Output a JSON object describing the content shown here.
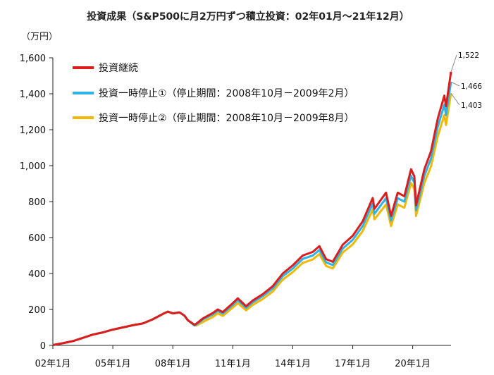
{
  "chart_data": {
    "type": "line",
    "title": "投資成果（S&P500に月2万円ずつ積立投資：02年01月～21年12月）",
    "ylabel": "（万円）",
    "ylim": [
      0,
      1600
    ],
    "yticks": [
      0,
      200,
      400,
      600,
      800,
      1000,
      1200,
      1400,
      1600
    ],
    "ytick_labels": [
      "0",
      "200",
      "400",
      "600",
      "800",
      "1,000",
      "1,200",
      "1,400",
      "1,600"
    ],
    "xlim": [
      "2002-01",
      "2021-12"
    ],
    "xticks": [
      "2002-01",
      "2005-01",
      "2008-01",
      "2011-01",
      "2014-01",
      "2017-01",
      "2020-01"
    ],
    "xtick_labels": [
      "02年1月",
      "05年1月",
      "08年1月",
      "11年1月",
      "14年1月",
      "17年1月",
      "20年1月"
    ],
    "grid": false,
    "legend_position": "top-left",
    "series": [
      {
        "name": "投資継続",
        "color": "#dd1c1c",
        "end_label": "1,522",
        "points": [
          [
            "2002-01",
            2
          ],
          [
            "2002-07",
            12
          ],
          [
            "2003-01",
            24
          ],
          [
            "2003-07",
            42
          ],
          [
            "2004-01",
            60
          ],
          [
            "2004-07",
            72
          ],
          [
            "2005-01",
            88
          ],
          [
            "2005-07",
            100
          ],
          [
            "2006-01",
            112
          ],
          [
            "2006-07",
            122
          ],
          [
            "2007-01",
            145
          ],
          [
            "2007-07",
            175
          ],
          [
            "2007-10",
            188
          ],
          [
            "2008-01",
            178
          ],
          [
            "2008-05",
            184
          ],
          [
            "2008-08",
            165
          ],
          [
            "2008-10",
            140
          ],
          [
            "2009-02",
            115
          ],
          [
            "2009-03",
            120
          ],
          [
            "2009-07",
            150
          ],
          [
            "2010-01",
            180
          ],
          [
            "2010-04",
            200
          ],
          [
            "2010-07",
            185
          ],
          [
            "2011-01",
            235
          ],
          [
            "2011-04",
            262
          ],
          [
            "2011-09",
            218
          ],
          [
            "2012-01",
            250
          ],
          [
            "2012-07",
            285
          ],
          [
            "2013-01",
            330
          ],
          [
            "2013-07",
            400
          ],
          [
            "2014-01",
            445
          ],
          [
            "2014-07",
            500
          ],
          [
            "2015-01",
            520
          ],
          [
            "2015-05",
            552
          ],
          [
            "2015-09",
            480
          ],
          [
            "2016-01",
            465
          ],
          [
            "2016-07",
            560
          ],
          [
            "2017-01",
            610
          ],
          [
            "2017-07",
            690
          ],
          [
            "2018-01",
            820
          ],
          [
            "2018-02",
            760
          ],
          [
            "2018-09",
            850
          ],
          [
            "2018-12",
            720
          ],
          [
            "2019-04",
            850
          ],
          [
            "2019-08",
            830
          ],
          [
            "2019-12",
            980
          ],
          [
            "2020-02",
            940
          ],
          [
            "2020-03",
            780
          ],
          [
            "2020-08",
            980
          ],
          [
            "2020-12",
            1080
          ],
          [
            "2021-04",
            1260
          ],
          [
            "2021-08",
            1390
          ],
          [
            "2021-09",
            1330
          ],
          [
            "2021-12",
            1522
          ]
        ]
      },
      {
        "name": "投資一時停止①（停止期間：2008年10月－2009年2月）",
        "color": "#2db3e6",
        "end_label": "1,466",
        "points": [
          [
            "2002-01",
            2
          ],
          [
            "2002-07",
            12
          ],
          [
            "2003-01",
            24
          ],
          [
            "2003-07",
            42
          ],
          [
            "2004-01",
            60
          ],
          [
            "2004-07",
            72
          ],
          [
            "2005-01",
            88
          ],
          [
            "2005-07",
            100
          ],
          [
            "2006-01",
            112
          ],
          [
            "2006-07",
            122
          ],
          [
            "2007-01",
            145
          ],
          [
            "2007-07",
            175
          ],
          [
            "2007-10",
            188
          ],
          [
            "2008-01",
            178
          ],
          [
            "2008-05",
            184
          ],
          [
            "2008-08",
            165
          ],
          [
            "2008-10",
            140
          ],
          [
            "2009-02",
            111
          ],
          [
            "2009-03",
            115
          ],
          [
            "2009-07",
            144
          ],
          [
            "2010-01",
            172
          ],
          [
            "2010-04",
            192
          ],
          [
            "2010-07",
            177
          ],
          [
            "2011-01",
            225
          ],
          [
            "2011-04",
            251
          ],
          [
            "2011-09",
            209
          ],
          [
            "2012-01",
            240
          ],
          [
            "2012-07",
            274
          ],
          [
            "2013-01",
            317
          ],
          [
            "2013-07",
            385
          ],
          [
            "2014-01",
            428
          ],
          [
            "2014-07",
            481
          ],
          [
            "2015-01",
            500
          ],
          [
            "2015-05",
            531
          ],
          [
            "2015-09",
            462
          ],
          [
            "2016-01",
            447
          ],
          [
            "2016-07",
            539
          ],
          [
            "2017-01",
            587
          ],
          [
            "2017-07",
            664
          ],
          [
            "2018-01",
            789
          ],
          [
            "2018-02",
            732
          ],
          [
            "2018-09",
            819
          ],
          [
            "2018-12",
            694
          ],
          [
            "2019-04",
            819
          ],
          [
            "2019-08",
            800
          ],
          [
            "2019-12",
            944
          ],
          [
            "2020-02",
            905
          ],
          [
            "2020-03",
            752
          ],
          [
            "2020-08",
            944
          ],
          [
            "2020-12",
            1040
          ],
          [
            "2021-04",
            1214
          ],
          [
            "2021-08",
            1339
          ],
          [
            "2021-09",
            1281
          ],
          [
            "2021-12",
            1466
          ]
        ]
      },
      {
        "name": "投資一時停止②（停止期間：2008年10月－2009年8月）",
        "color": "#f2b807",
        "end_label": "1,403",
        "points": [
          [
            "2002-01",
            2
          ],
          [
            "2002-07",
            12
          ],
          [
            "2003-01",
            24
          ],
          [
            "2003-07",
            42
          ],
          [
            "2004-01",
            60
          ],
          [
            "2004-07",
            72
          ],
          [
            "2005-01",
            88
          ],
          [
            "2005-07",
            100
          ],
          [
            "2006-01",
            112
          ],
          [
            "2006-07",
            122
          ],
          [
            "2007-01",
            145
          ],
          [
            "2007-07",
            175
          ],
          [
            "2007-10",
            188
          ],
          [
            "2008-01",
            178
          ],
          [
            "2008-05",
            184
          ],
          [
            "2008-08",
            165
          ],
          [
            "2008-10",
            140
          ],
          [
            "2009-02",
            111
          ],
          [
            "2009-03",
            110
          ],
          [
            "2009-07",
            130
          ],
          [
            "2010-01",
            158
          ],
          [
            "2010-04",
            178
          ],
          [
            "2010-07",
            164
          ],
          [
            "2011-01",
            210
          ],
          [
            "2011-04",
            235
          ],
          [
            "2011-09",
            195
          ],
          [
            "2012-01",
            225
          ],
          [
            "2012-07",
            258
          ],
          [
            "2013-01",
            300
          ],
          [
            "2013-07",
            366
          ],
          [
            "2014-01",
            408
          ],
          [
            "2014-07",
            459
          ],
          [
            "2015-01",
            478
          ],
          [
            "2015-05",
            508
          ],
          [
            "2015-09",
            442
          ],
          [
            "2016-01",
            428
          ],
          [
            "2016-07",
            516
          ],
          [
            "2017-01",
            562
          ],
          [
            "2017-07",
            636
          ],
          [
            "2018-01",
            756
          ],
          [
            "2018-02",
            701
          ],
          [
            "2018-09",
            784
          ],
          [
            "2018-12",
            664
          ],
          [
            "2019-04",
            784
          ],
          [
            "2019-08",
            766
          ],
          [
            "2019-12",
            904
          ],
          [
            "2020-02",
            867
          ],
          [
            "2020-03",
            720
          ],
          [
            "2020-08",
            904
          ],
          [
            "2020-12",
            996
          ],
          [
            "2021-04",
            1162
          ],
          [
            "2021-08",
            1282
          ],
          [
            "2021-09",
            1226
          ],
          [
            "2021-12",
            1403
          ]
        ]
      }
    ]
  }
}
